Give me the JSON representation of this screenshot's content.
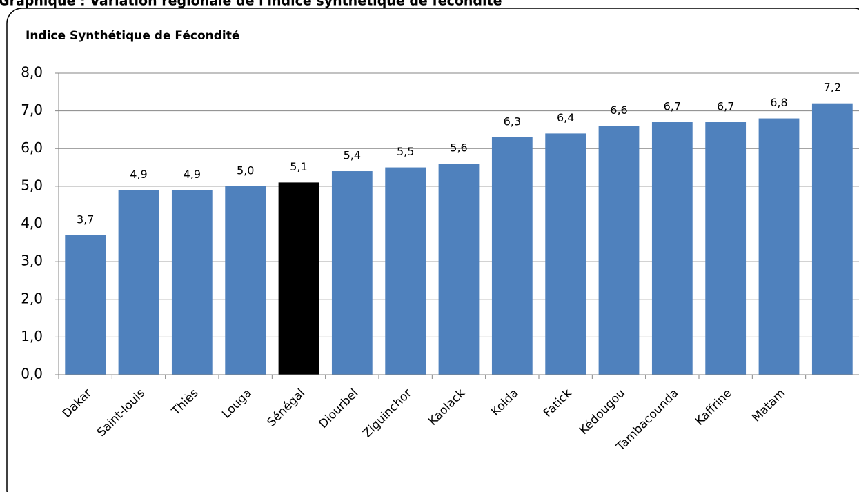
{
  "chart_data": {
    "type": "bar",
    "title": "Graphique : Variation régionale de l'indice synthétique de fécondité",
    "y_label": "Indice Synthétique de Fécondité",
    "categories": [
      "Dakar",
      "Saint-louis",
      "Thiès",
      "Louga",
      "Sénégal",
      "Diourbel",
      "Ziguinchor",
      "Kaolack",
      "Kolda",
      "Fatick",
      "Kédougou",
      "Tambacounda",
      "Kaffrine",
      "Matam",
      null
    ],
    "values": [
      3.7,
      4.9,
      4.9,
      5.0,
      5.1,
      5.4,
      5.5,
      5.6,
      6.3,
      6.4,
      6.6,
      6.7,
      6.7,
      6.8,
      7.2
    ],
    "value_labels": [
      "3,7",
      "4,9",
      "4,9",
      "5,0",
      "5,1",
      "5,4",
      "5,5",
      "5,6",
      "6,3",
      "6,4",
      "6,6",
      "6,7",
      "6,7",
      "6,8",
      "7,2"
    ],
    "colors": [
      "#4f81bd",
      "#4f81bd",
      "#4f81bd",
      "#4f81bd",
      "#000000",
      "#4f81bd",
      "#4f81bd",
      "#4f81bd",
      "#4f81bd",
      "#4f81bd",
      "#4f81bd",
      "#4f81bd",
      "#4f81bd",
      "#4f81bd",
      "#4f81bd"
    ],
    "ylim": [
      0,
      8
    ],
    "yticks": [
      {
        "value": 0,
        "label": "0,0"
      },
      {
        "value": 1,
        "label": "1,0"
      },
      {
        "value": 2,
        "label": "2,0"
      },
      {
        "value": 3,
        "label": "3,0"
      },
      {
        "value": 4,
        "label": "4,0"
      },
      {
        "value": 5,
        "label": "5,0"
      },
      {
        "value": 6,
        "label": "6,0"
      },
      {
        "value": 7,
        "label": "7,0"
      },
      {
        "value": 8,
        "label": "8,0"
      }
    ],
    "grid": true
  }
}
